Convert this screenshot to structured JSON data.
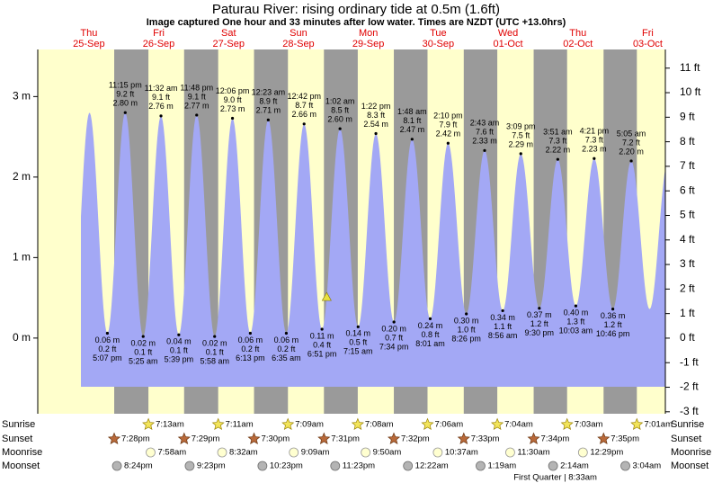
{
  "chart_data": {
    "type": "tide",
    "title": "Paturau River: rising  ordinary tide at 0.5m (1.6ft)",
    "subtitle": "Image captured One hour and 33 minutes after low water. Times are NZDT (UTC +13.0hrs)",
    "current_height_m": 0.5,
    "ylim": [
      -0.94,
      3.585
    ],
    "yticks": [
      {
        "value": 0,
        "label": "0 m"
      },
      {
        "value": 1,
        "label": "1 m"
      },
      {
        "value": 2,
        "label": "2 m"
      },
      {
        "value": 3,
        "label": "3 m"
      }
    ],
    "y2lim": [
      -3.08,
      11.76
    ],
    "y2ticks": [
      {
        "value": -3,
        "label": "-3 ft"
      },
      {
        "value": -2,
        "label": "-2 ft"
      },
      {
        "value": -1,
        "label": "-1 ft"
      },
      {
        "value": 0,
        "label": "0 ft"
      },
      {
        "value": 1,
        "label": "1 ft"
      },
      {
        "value": 2,
        "label": "2 ft"
      },
      {
        "value": 3,
        "label": "3 ft"
      },
      {
        "value": 4,
        "label": "4 ft"
      },
      {
        "value": 5,
        "label": "5 ft"
      },
      {
        "value": 6,
        "label": "6 ft"
      },
      {
        "value": 7,
        "label": "7 ft"
      },
      {
        "value": 8,
        "label": "8 ft"
      },
      {
        "value": 9,
        "label": "9 ft"
      },
      {
        "value": 10,
        "label": "10 ft"
      },
      {
        "value": 11,
        "label": "11 ft"
      }
    ],
    "row_labels": [
      "Sunrise",
      "Sunset",
      "Moonrise",
      "Moonset"
    ],
    "days": [
      {
        "weekday": "Thu",
        "date": "25-Sep",
        "sunset": "7:28pm",
        "moonset": "8:24pm",
        "tides": [
          {
            "time": "5:07 pm",
            "m": 0.06,
            "m_label": "0.06 m",
            "ft": 0.2,
            "ft_label": "0.2 ft"
          },
          {
            "time": "11:15 pm",
            "m": 2.8,
            "m_label": "2.80 m",
            "ft": 9.2,
            "ft_label": "9.2 ft"
          }
        ]
      },
      {
        "weekday": "Fri",
        "date": "26-Sep",
        "sunrise": "7:13am",
        "sunset": "7:29pm",
        "moonrise": "7:58am",
        "moonset": "9:23pm",
        "tides": [
          {
            "time": "5:25 am",
            "m": 0.02,
            "m_label": "0.02 m",
            "ft": 0.1,
            "ft_label": "0.1 ft"
          },
          {
            "time": "11:32 am",
            "m": 2.76,
            "m_label": "2.76 m",
            "ft": 9.1,
            "ft_label": "9.1 ft"
          },
          {
            "time": "5:39 pm",
            "m": 0.04,
            "m_label": "0.04 m",
            "ft": 0.1,
            "ft_label": "0.1 ft"
          },
          {
            "time": "11:48 pm",
            "m": 2.77,
            "m_label": "2.77 m",
            "ft": 9.1,
            "ft_label": "9.1 ft"
          }
        ]
      },
      {
        "weekday": "Sat",
        "date": "27-Sep",
        "sunrise": "7:11am",
        "sunset": "7:30pm",
        "moonrise": "8:32am",
        "moonset": "10:23pm",
        "tides": [
          {
            "time": "5:58 am",
            "m": 0.02,
            "m_label": "0.02 m",
            "ft": 0.1,
            "ft_label": "0.1 ft"
          },
          {
            "time": "12:06 pm",
            "m": 2.73,
            "m_label": "2.73 m",
            "ft": 9.0,
            "ft_label": "9.0 ft"
          },
          {
            "time": "6:13 pm",
            "m": 0.06,
            "m_label": "0.06 m",
            "ft": 0.2,
            "ft_label": "0.2 ft"
          }
        ]
      },
      {
        "weekday": "Sun",
        "date": "28-Sep",
        "sunrise": "7:09am",
        "sunset": "7:31pm",
        "moonrise": "9:09am",
        "moonset": "11:23pm",
        "tides": [
          {
            "time": "12:23 am",
            "m": 2.71,
            "m_label": "2.71 m",
            "ft": 8.9,
            "ft_label": "8.9 ft"
          },
          {
            "time": "6:35 am",
            "m": 0.06,
            "m_label": "0.06 m",
            "ft": 0.2,
            "ft_label": "0.2 ft"
          },
          {
            "time": "12:42 pm",
            "m": 2.66,
            "m_label": "2.66 m",
            "ft": 8.7,
            "ft_label": "8.7 ft"
          },
          {
            "time": "6:51 pm",
            "m": 0.11,
            "m_label": "0.11 m",
            "ft": 0.4,
            "ft_label": "0.4 ft"
          }
        ]
      },
      {
        "weekday": "Mon",
        "date": "29-Sep",
        "sunrise": "7:08am",
        "sunset": "7:32pm",
        "moonrise": "9:50am",
        "tides": [
          {
            "time": "1:02 am",
            "m": 2.6,
            "m_label": "2.60 m",
            "ft": 8.5,
            "ft_label": "8.5 ft"
          },
          {
            "time": "7:15 am",
            "m": 0.14,
            "m_label": "0.14 m",
            "ft": 0.5,
            "ft_label": "0.5 ft"
          },
          {
            "time": "1:22 pm",
            "m": 2.54,
            "m_label": "2.54 m",
            "ft": 8.3,
            "ft_label": "8.3 ft"
          },
          {
            "time": "7:34 pm",
            "m": 0.2,
            "m_label": "0.20 m",
            "ft": 0.7,
            "ft_label": "0.7 ft"
          }
        ]
      },
      {
        "weekday": "Tue",
        "date": "30-Sep",
        "sunrise": "7:06am",
        "sunset": "7:33pm",
        "moonrise": "10:37am",
        "moonset": "12:22am",
        "tides": [
          {
            "time": "1:48 am",
            "m": 2.47,
            "m_label": "2.47 m",
            "ft": 8.1,
            "ft_label": "8.1 ft"
          },
          {
            "time": "8:01 am",
            "m": 0.24,
            "m_label": "0.24 m",
            "ft": 0.8,
            "ft_label": "0.8 ft"
          },
          {
            "time": "2:10 pm",
            "m": 2.42,
            "m_label": "2.42 m",
            "ft": 7.9,
            "ft_label": "7.9 ft"
          },
          {
            "time": "8:26 pm",
            "m": 0.3,
            "m_label": "0.30 m",
            "ft": 1.0,
            "ft_label": "1.0 ft"
          }
        ]
      },
      {
        "weekday": "Wed",
        "date": "01-Oct",
        "sunrise": "7:04am",
        "sunset": "7:34pm",
        "moonrise": "11:30am",
        "moonset": "1:19am",
        "tides": [
          {
            "time": "2:43 am",
            "m": 2.33,
            "m_label": "2.33 m",
            "ft": 7.6,
            "ft_label": "7.6 ft"
          },
          {
            "time": "8:56 am",
            "m": 0.34,
            "m_label": "0.34 m",
            "ft": 1.1,
            "ft_label": "1.1 ft"
          },
          {
            "time": "3:09 pm",
            "m": 2.29,
            "m_label": "2.29 m",
            "ft": 7.5,
            "ft_label": "7.5 ft"
          },
          {
            "time": "9:30 pm",
            "m": 0.37,
            "m_label": "0.37 m",
            "ft": 1.2,
            "ft_label": "1.2 ft"
          }
        ]
      },
      {
        "weekday": "Thu",
        "date": "02-Oct",
        "sunrise": "7:03am",
        "sunset": "7:35pm",
        "moonrise": "12:29pm",
        "moonset": "2:14am",
        "moon_phase": "First Quarter | 8:33am",
        "tides": [
          {
            "time": "3:51 am",
            "m": 2.22,
            "m_label": "2.22 m",
            "ft": 7.3,
            "ft_label": "7.3 ft"
          },
          {
            "time": "10:03 am",
            "m": 0.4,
            "m_label": "0.40 m",
            "ft": 1.3,
            "ft_label": "1.3 ft"
          },
          {
            "time": "4:21 pm",
            "m": 2.23,
            "m_label": "2.23 m",
            "ft": 7.3,
            "ft_label": "7.3 ft"
          },
          {
            "time": "10:46 pm",
            "m": 0.36,
            "m_label": "0.36 m",
            "ft": 1.2,
            "ft_label": "1.2 ft"
          }
        ]
      },
      {
        "weekday": "Fri",
        "date": "03-Oct",
        "sunrise": "7:01am",
        "moonset": "3:04am",
        "tides": [
          {
            "time": "5:05 am",
            "m": 2.2,
            "m_label": "2.20 m",
            "ft": 7.2,
            "ft_label": "7.2 ft"
          }
        ]
      }
    ]
  }
}
